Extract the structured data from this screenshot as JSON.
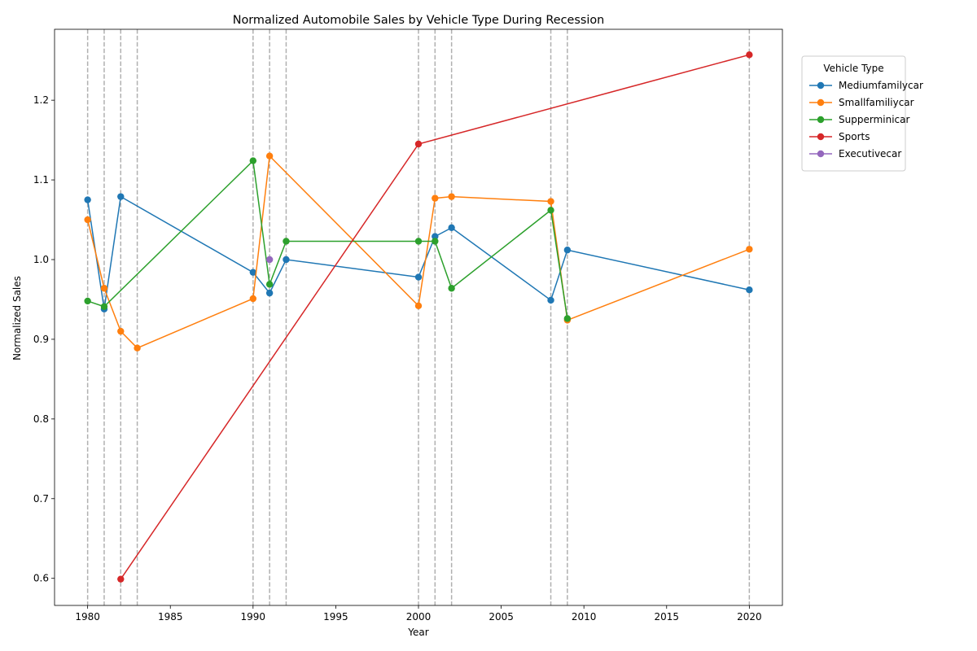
{
  "chart_data": {
    "type": "line",
    "title": "Normalized Automobile Sales by Vehicle Type During Recession",
    "xlabel": "Year",
    "ylabel": "Normalized Sales",
    "xlim": [
      1978,
      2022
    ],
    "ylim": [
      0.566,
      1.289
    ],
    "xticks": [
      1980,
      1985,
      1990,
      1995,
      2000,
      2005,
      2010,
      2015,
      2020
    ],
    "yticks": [
      0.6,
      0.7,
      0.8,
      0.9,
      1.0,
      1.1,
      1.2
    ],
    "grid": false,
    "recession_lines": [
      1980,
      1981,
      1982,
      1983,
      1990,
      1991,
      1992,
      2000,
      2001,
      2002,
      2008,
      2009,
      2020
    ],
    "legend": {
      "title": "Vehicle Type",
      "placement": "outside-top-right"
    },
    "series": [
      {
        "name": "Mediumfamilycar",
        "color": "#1f77b4",
        "points": [
          [
            1980,
            1.075
          ],
          [
            1981,
            0.938
          ],
          [
            1982,
            1.079
          ],
          [
            1990,
            0.984
          ],
          [
            1991,
            0.958
          ],
          [
            1992,
            1.0
          ],
          [
            2000,
            0.978
          ],
          [
            2001,
            1.029
          ],
          [
            2002,
            1.04
          ],
          [
            2008,
            0.949
          ],
          [
            2009,
            1.012
          ],
          [
            2020,
            0.962
          ]
        ]
      },
      {
        "name": "Smallfamiliycar",
        "color": "#ff7f0e",
        "points": [
          [
            1980,
            1.05
          ],
          [
            1981,
            0.964
          ],
          [
            1982,
            0.91
          ],
          [
            1983,
            0.889
          ],
          [
            1990,
            0.951
          ],
          [
            1991,
            1.13
          ],
          [
            2000,
            0.942
          ],
          [
            2001,
            1.077
          ],
          [
            2002,
            1.079
          ],
          [
            2008,
            1.073
          ],
          [
            2009,
            0.924
          ],
          [
            2020,
            1.013
          ]
        ]
      },
      {
        "name": "Supperminicar",
        "color": "#2ca02c",
        "points": [
          [
            1980,
            0.948
          ],
          [
            1981,
            0.941
          ],
          [
            1990,
            1.124
          ],
          [
            1991,
            0.969
          ],
          [
            1992,
            1.023
          ],
          [
            2000,
            1.023
          ],
          [
            2001,
            1.023
          ],
          [
            2002,
            0.964
          ],
          [
            2008,
            1.062
          ],
          [
            2009,
            0.926
          ]
        ]
      },
      {
        "name": "Sports",
        "color": "#d62728",
        "points": [
          [
            1982,
            0.599
          ],
          [
            2000,
            1.145
          ],
          [
            2020,
            1.257
          ]
        ]
      },
      {
        "name": "Executivecar",
        "color": "#9467bd",
        "points": [
          [
            1991,
            1.0
          ]
        ]
      }
    ]
  }
}
